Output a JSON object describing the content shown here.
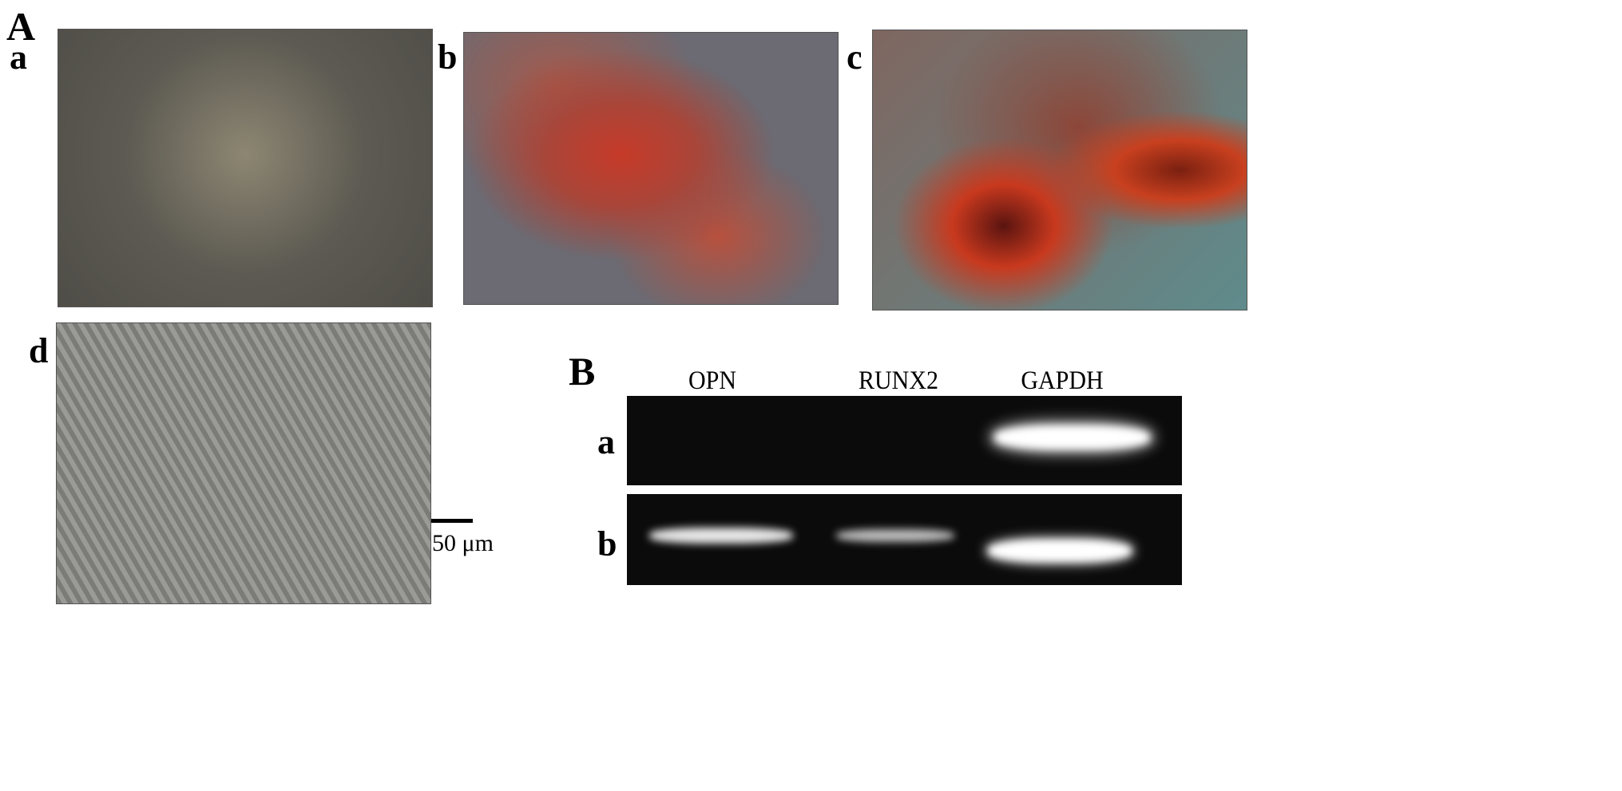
{
  "panel_A": {
    "label": "A",
    "images": [
      {
        "label": "a",
        "stain": "none",
        "tint": "#6f6a5c"
      },
      {
        "label": "b",
        "stain": "red",
        "tint": "#a04a3a"
      },
      {
        "label": "c",
        "stain": "red",
        "tint": "#6f8585"
      },
      {
        "label": "d",
        "stain": "none",
        "tint": "#8a8a86"
      }
    ],
    "scale_bar": "50 μm"
  },
  "panel_B": {
    "label": "B",
    "lanes": [
      "OPN",
      "RUNX2",
      "GAPDH"
    ],
    "rows": [
      {
        "label": "a",
        "bands": {
          "OPN": 0,
          "RUNX2": 0,
          "GAPDH": 1
        }
      },
      {
        "label": "b",
        "bands": {
          "OPN": 0.8,
          "RUNX2": 0.6,
          "GAPDH": 1
        }
      }
    ]
  }
}
